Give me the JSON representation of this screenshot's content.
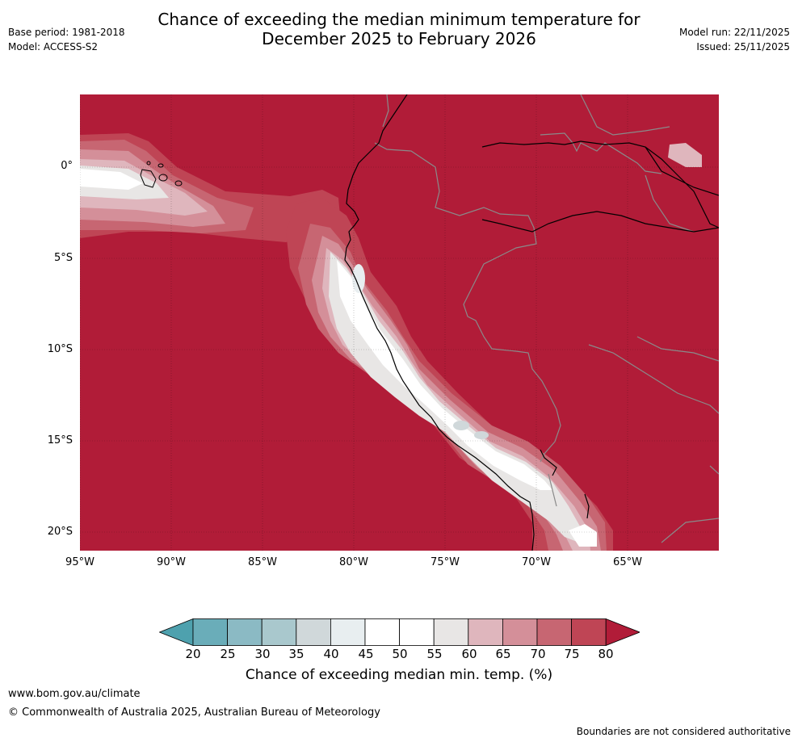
{
  "header": {
    "title_line1": "Chance of exceeding the median minimum temperature for",
    "title_line2": "December 2025 to February 2026",
    "base_period": "Base period: 1981-2018",
    "model": "Model: ACCESS-S2",
    "model_run": "Model run: 22/11/2025",
    "issued": "Issued: 25/11/2025"
  },
  "map": {
    "lat_labels": [
      "0°",
      "5°S",
      "10°S",
      "15°S",
      "20°S"
    ],
    "lon_labels": [
      "95°W",
      "90°W",
      "85°W",
      "80°W",
      "75°W",
      "70°W",
      "65°W"
    ],
    "dominant_colour": "#b11c38",
    "coastline_colour": "#000000",
    "border_colour": "#8a8a8a"
  },
  "legend": {
    "ticks": [
      "20",
      "25",
      "30",
      "35",
      "40",
      "45",
      "50",
      "55",
      "60",
      "65",
      "70",
      "75",
      "80"
    ],
    "colours": [
      "#4ea1ae",
      "#6aadb9",
      "#8bbac4",
      "#a9c8cd",
      "#d0d8da",
      "#e8eef0",
      "#ffffff",
      "#ffffff",
      "#e8e6e5",
      "#dfb6bd",
      "#d48f99",
      "#c76672",
      "#bf4555",
      "#b11c38"
    ],
    "label": "Chance of exceeding median min. temp. (%)"
  },
  "footer": {
    "url": "www.bom.gov.au/climate",
    "copyright": "© Commonwealth of Australia 2025, Australian Bureau of Meteorology",
    "disclaimer": "Boundaries are not considered authoritative"
  }
}
